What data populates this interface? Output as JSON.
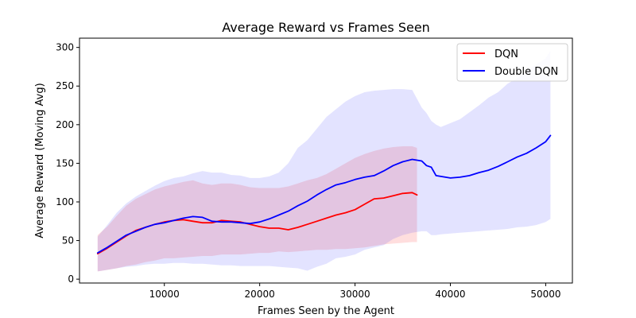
{
  "chart_data": {
    "type": "line",
    "title": "Average Reward vs Frames Seen",
    "xlabel": "Frames Seen by the Agent",
    "ylabel": "Average Reward (Moving Avg)",
    "xlim": [
      1100,
      52800
    ],
    "ylim": [
      -5,
      312
    ],
    "x_ticks": [
      10000,
      20000,
      30000,
      40000,
      50000
    ],
    "x_tick_labels": [
      "10000",
      "20000",
      "30000",
      "40000",
      "50000"
    ],
    "y_ticks": [
      0,
      50,
      100,
      150,
      200,
      250,
      300
    ],
    "y_tick_labels": [
      "0",
      "50",
      "100",
      "150",
      "200",
      "250",
      "300"
    ],
    "grid": false,
    "legend_position": "top-right",
    "series": [
      {
        "name": "DQN",
        "color": "#ff0000",
        "band_color": "#ff0000",
        "x": [
          3000,
          4000,
          5000,
          6000,
          7000,
          8000,
          9000,
          10000,
          11000,
          12000,
          13000,
          14000,
          15000,
          16000,
          17000,
          18000,
          19000,
          20000,
          21000,
          22000,
          23000,
          24000,
          25000,
          26000,
          27000,
          28000,
          29000,
          30000,
          31000,
          32000,
          33000,
          34000,
          35000,
          36000,
          36500
        ],
        "values": [
          33,
          40,
          48,
          56,
          63,
          67,
          71,
          74,
          76,
          77,
          75,
          73,
          73,
          76,
          75,
          74,
          71,
          68,
          66,
          66,
          64,
          67,
          71,
          75,
          79,
          83,
          86,
          90,
          97,
          104,
          105,
          108,
          111,
          112,
          109
        ],
        "lower": [
          10,
          12,
          14,
          17,
          19,
          22,
          24,
          27,
          27,
          28,
          29,
          30,
          30,
          32,
          32,
          32,
          33,
          34,
          34,
          36,
          35,
          36,
          37,
          38,
          38,
          39,
          39,
          40,
          41,
          43,
          45,
          46,
          47,
          48,
          48
        ],
        "upper": [
          57,
          68,
          82,
          95,
          104,
          110,
          116,
          120,
          123,
          126,
          128,
          124,
          122,
          124,
          124,
          122,
          119,
          118,
          118,
          118,
          120,
          124,
          128,
          131,
          136,
          143,
          150,
          157,
          162,
          166,
          169,
          171,
          172,
          172,
          170
        ]
      },
      {
        "name": "Double DQN",
        "color": "#0000ff",
        "band_color": "#0000ff",
        "x": [
          3000,
          4000,
          5000,
          6000,
          7000,
          8000,
          9000,
          10000,
          11000,
          12000,
          13000,
          14000,
          15000,
          16000,
          17000,
          18000,
          19000,
          20000,
          21000,
          22000,
          23000,
          24000,
          25000,
          26000,
          27000,
          28000,
          29000,
          30000,
          31000,
          32000,
          33000,
          34000,
          35000,
          36000,
          37000,
          37500,
          38000,
          38500,
          39000,
          40000,
          41000,
          42000,
          43000,
          44000,
          45000,
          46000,
          47000,
          48000,
          49000,
          50000,
          50500
        ],
        "values": [
          34,
          41,
          49,
          57,
          62,
          67,
          71,
          73,
          76,
          79,
          81,
          80,
          75,
          74,
          74,
          73,
          72,
          74,
          78,
          83,
          88,
          95,
          101,
          109,
          116,
          122,
          125,
          129,
          132,
          134,
          140,
          147,
          152,
          155,
          153,
          147,
          145,
          134,
          133,
          131,
          132,
          134,
          138,
          141,
          146,
          152,
          158,
          163,
          170,
          178,
          186
        ],
        "lower": [
          10,
          12,
          14,
          16,
          17,
          19,
          20,
          20,
          21,
          21,
          20,
          20,
          19,
          18,
          18,
          17,
          17,
          17,
          17,
          16,
          15,
          14,
          11,
          16,
          20,
          27,
          29,
          32,
          38,
          41,
          44,
          52,
          57,
          60,
          62,
          62,
          57,
          57,
          58,
          59,
          60,
          61,
          62,
          63,
          64,
          65,
          67,
          68,
          70,
          74,
          78
        ],
        "upper": [
          55,
          70,
          86,
          98,
          107,
          114,
          121,
          127,
          131,
          133,
          137,
          140,
          138,
          138,
          135,
          134,
          131,
          131,
          133,
          138,
          150,
          170,
          180,
          195,
          210,
          220,
          230,
          237,
          242,
          244,
          245,
          246,
          246,
          245,
          222,
          215,
          205,
          200,
          197,
          202,
          207,
          216,
          225,
          235,
          242,
          253,
          260,
          270,
          278,
          286,
          296
        ]
      }
    ]
  }
}
